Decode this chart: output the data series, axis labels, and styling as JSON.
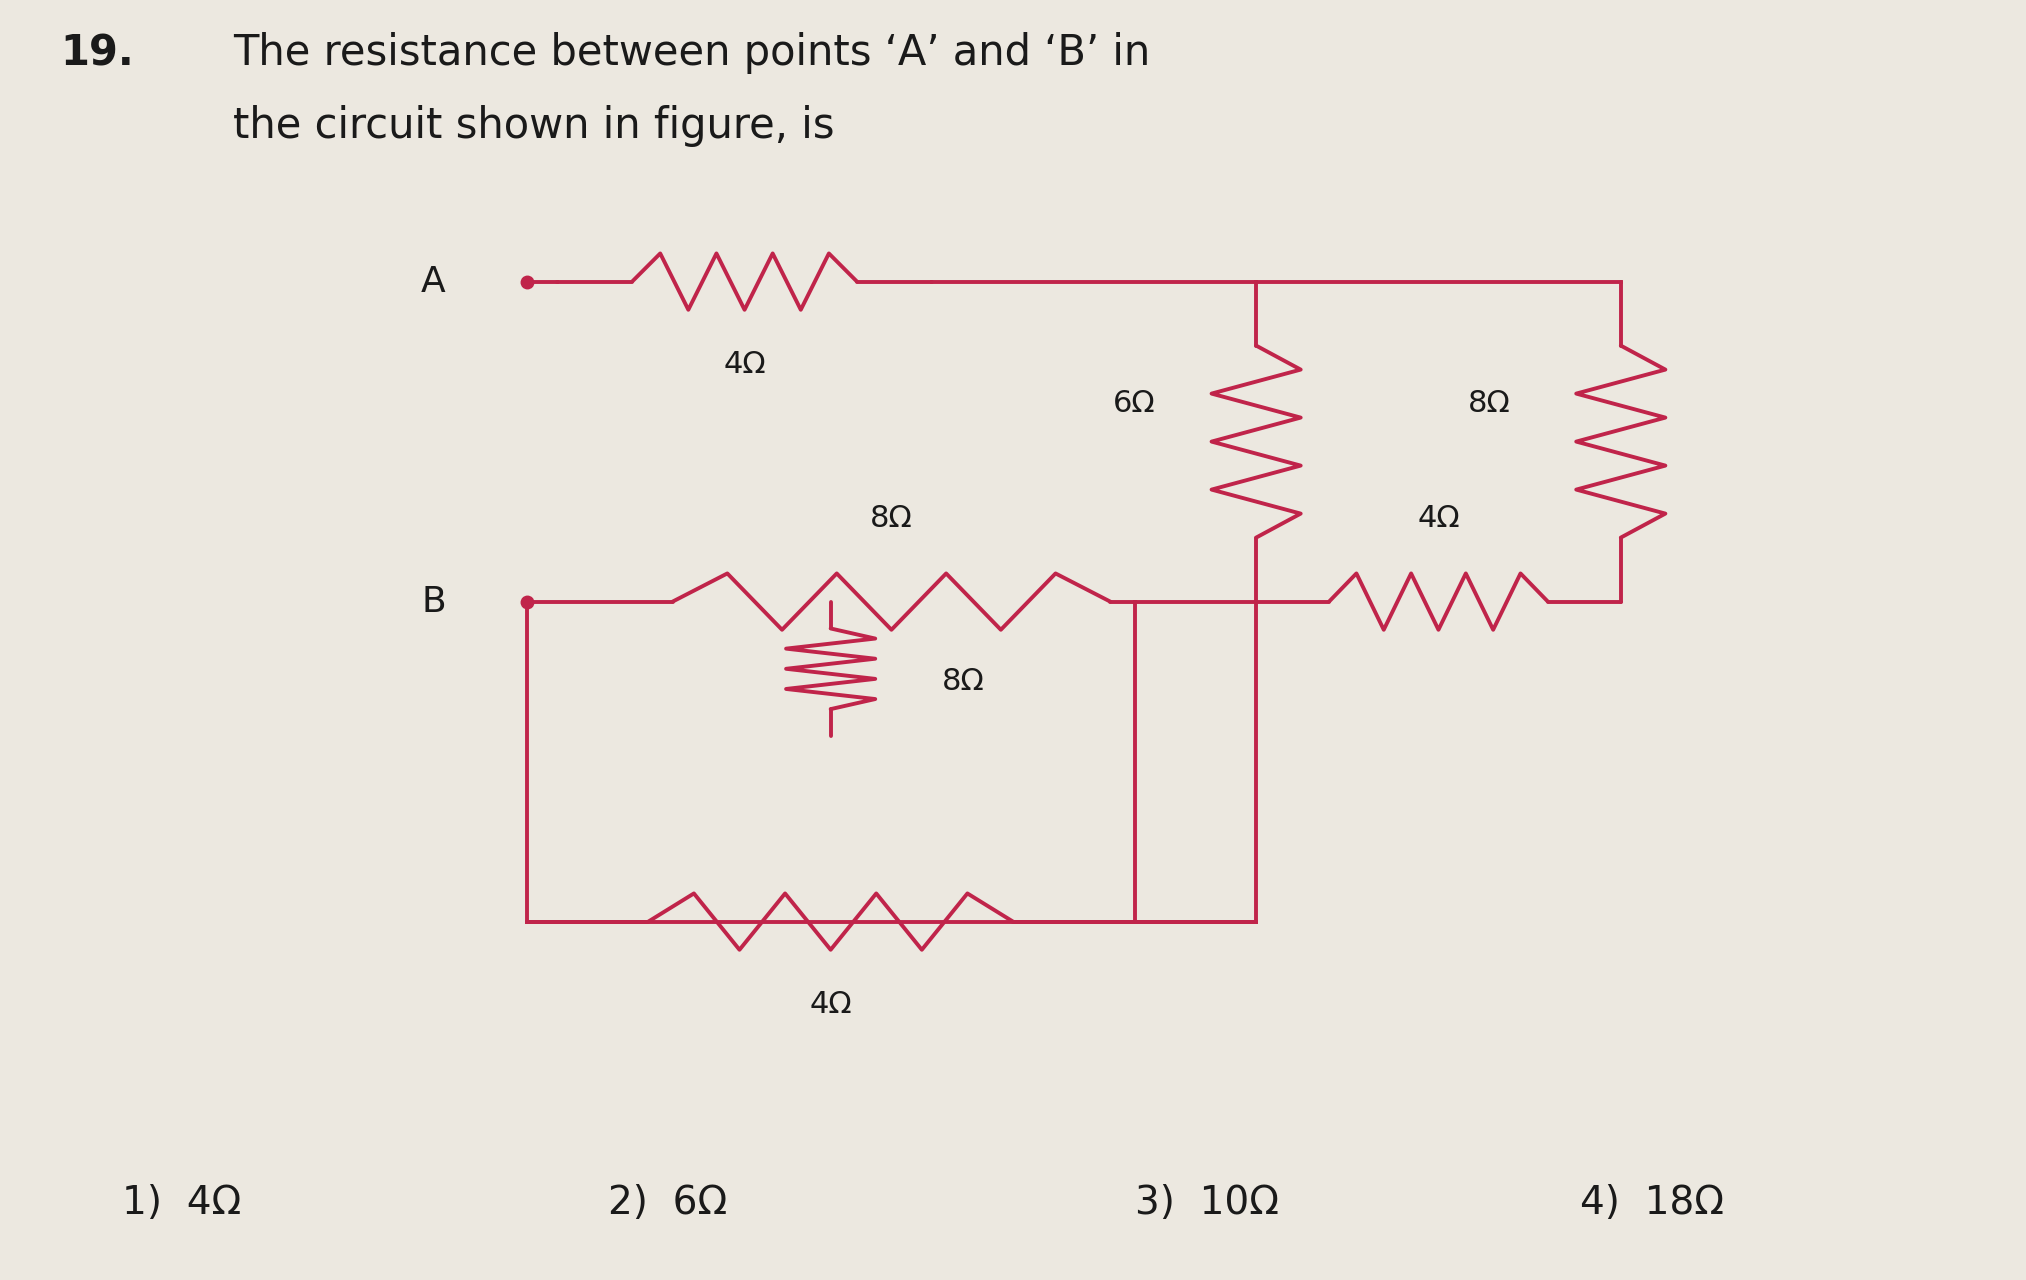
{
  "title_line1": "The resistance between points ‘A’ and ‘B’ in",
  "title_line2": "the circuit shown in figure, is",
  "question_number": "19.",
  "bg_color": "#ece8e0",
  "circuit_color": "#c0244a",
  "text_color": "#1a1a1a",
  "options": [
    "1)  4Ω",
    "2)  6Ω",
    "3)  10Ω",
    "4)  18Ω"
  ],
  "R_4ohm_top": "4Ω",
  "R_6ohm": "6Ω",
  "R_8ohm_right_top": "8Ω",
  "R_8ohm_B": "8Ω",
  "R_4ohm_mid": "4Ω",
  "R_8ohm_inner": "8Ω",
  "R_4ohm_bot": "4Ω",
  "xA": 0.26,
  "xN1": 0.46,
  "xN2": 0.62,
  "xN3": 0.8,
  "yTop": 0.78,
  "yMid": 0.53,
  "yBotLoop": 0.28,
  "xInnerRight": 0.56
}
